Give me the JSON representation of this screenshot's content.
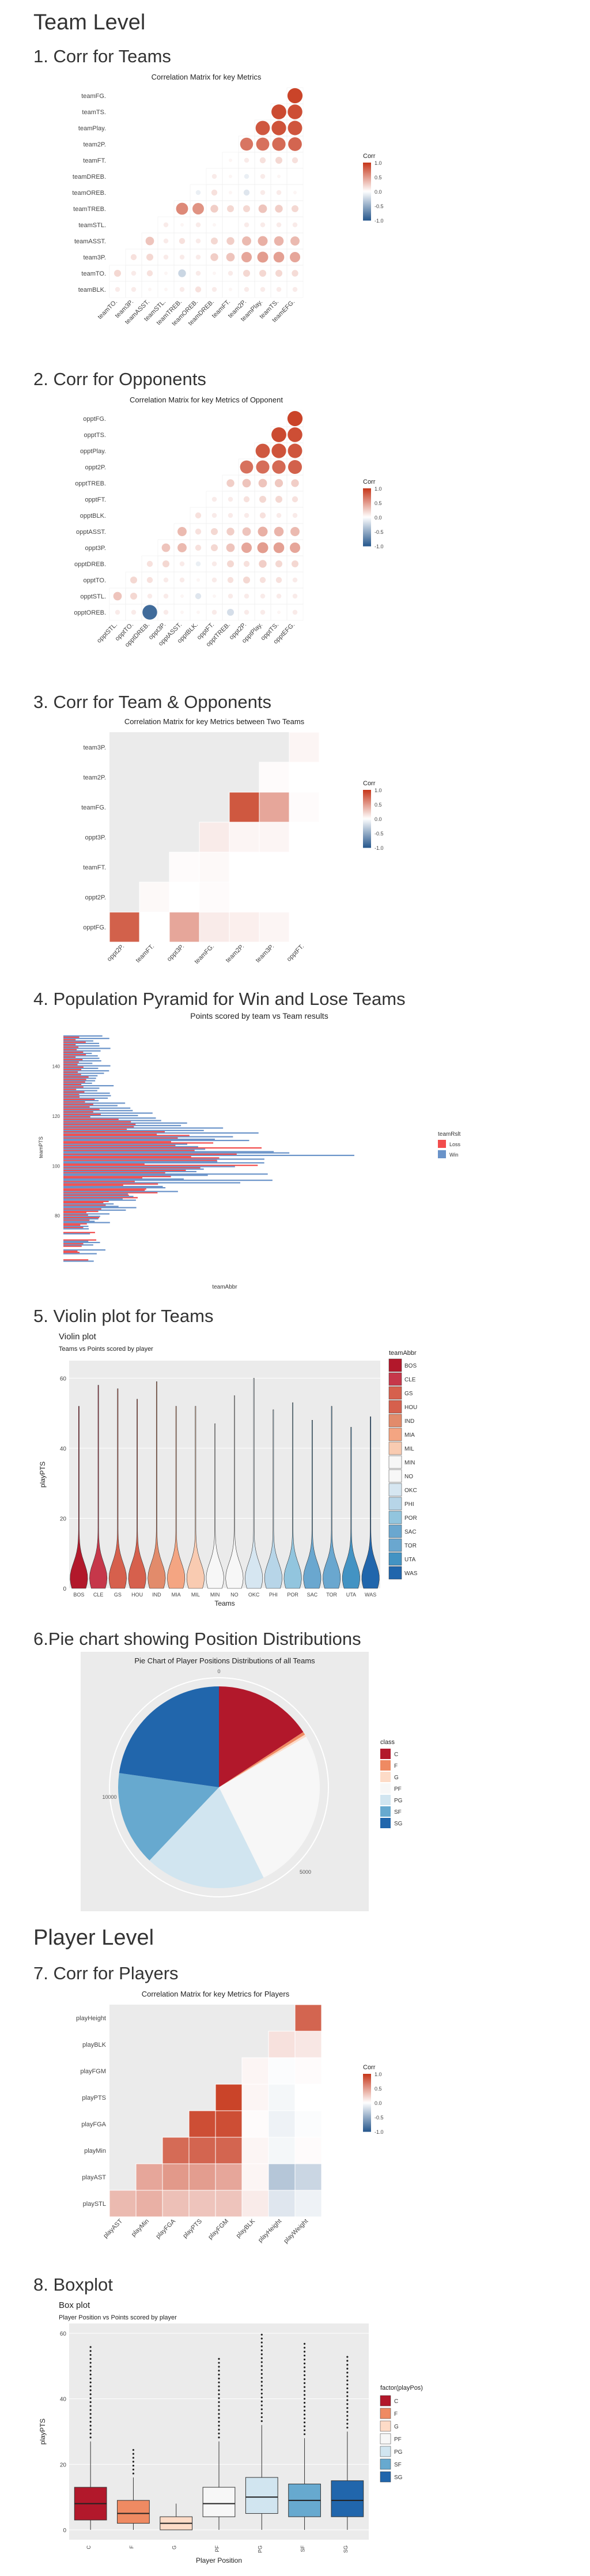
{
  "headings": {
    "team_level": "Team Level",
    "corr_teams": "1. Corr for Teams",
    "corr_opponents": "2. Corr for Opponents",
    "corr_team_opp": "3. Corr for Team & Opponents",
    "pyramid": "4. Population Pyramid for Win and Lose Teams",
    "violin": "5. Violin plot for Teams",
    "pie": "6.Pie chart showing Position Distributions",
    "player_level": "Player Level",
    "corr_players": "7. Corr for Players",
    "boxplot": "8. Boxplot"
  },
  "colors": {
    "corr_pos": "#c73a1e",
    "corr_neg": "#2b5b8f",
    "panel_bg": "#ebebeb",
    "win": "#6a93c9",
    "lose": "#f24c4c",
    "rdbu_13": [
      "#b2182b",
      "#c6374a",
      "#d6604d",
      "#e28b6b",
      "#f4a582",
      "#f9cbb1",
      "#f7f7f7",
      "#d6e6f1",
      "#b7d5e8",
      "#92c5de",
      "#6aa7cf",
      "#4393c3",
      "#2166ac"
    ],
    "rdbu_7": [
      "#b2182b",
      "#ef8a62",
      "#fddbc7",
      "#f7f7f7",
      "#d1e5f0",
      "#67a9cf",
      "#2166ac"
    ]
  },
  "chart_data": [
    {
      "id": "corr_teams",
      "type": "heatmap",
      "style": "circle",
      "title": "Correlation Matrix for key Metrics",
      "row_labels": [
        "teamFG.",
        "teamTS.",
        "teamPlay.",
        "team2P.",
        "teamFT.",
        "teamDREB.",
        "teamOREB.",
        "teamTREB.",
        "teamSTL.",
        "teamASST.",
        "team3P.",
        "teamTO.",
        "teamBLK."
      ],
      "col_labels": [
        "teamTO.",
        "team3P.",
        "teamASST.",
        "teamSTL.",
        "teamTREB.",
        "teamOREB.",
        "teamDREB.",
        "teamFT.",
        "team2P.",
        "teamPlay.",
        "teamTS.",
        "teamEFG."
      ],
      "values": [
        [
          0,
          0,
          0,
          0,
          0,
          0,
          0,
          0,
          0,
          0,
          0,
          0.95
        ],
        [
          0,
          0,
          0,
          0,
          0,
          0,
          0,
          0,
          0,
          0,
          0.92,
          0.9
        ],
        [
          0,
          0,
          0,
          0,
          0,
          0,
          0,
          0,
          0,
          0.85,
          0.88,
          0.86
        ],
        [
          0,
          0,
          0,
          0,
          0,
          0,
          0,
          0,
          0.7,
          0.72,
          0.75,
          0.78
        ],
        [
          0,
          0,
          0,
          0,
          0,
          0,
          0,
          0.05,
          0.1,
          0.15,
          0.2,
          0.15
        ],
        [
          0,
          0,
          0,
          0,
          0,
          0,
          0.1,
          0.05,
          -0.1,
          0.1,
          0.05,
          0.0
        ],
        [
          0,
          0,
          0,
          0,
          0,
          -0.1,
          0.15,
          0.05,
          -0.15,
          0.1,
          0.1,
          0.05
        ],
        [
          0,
          0,
          0,
          0,
          0.6,
          0.55,
          0.25,
          0.2,
          0.2,
          0.3,
          0.25,
          0.2
        ],
        [
          0,
          0,
          0,
          0.1,
          0.05,
          0.1,
          0.05,
          0.0,
          0.1,
          0.1,
          0.1,
          0.1
        ],
        [
          0,
          0,
          0.3,
          0.1,
          0.15,
          0.1,
          0.2,
          0.25,
          0.35,
          0.4,
          0.38,
          0.35
        ],
        [
          0,
          0.15,
          0.2,
          0.1,
          0.1,
          0.1,
          0.25,
          0.3,
          0.45,
          0.5,
          0.48,
          0.45
        ],
        [
          0.2,
          0.1,
          0.15,
          0.05,
          -0.25,
          0.1,
          0.05,
          0.1,
          0.2,
          0.2,
          0.2,
          0.18
        ],
        [
          0.1,
          0.1,
          0.05,
          0.05,
          0.1,
          0.15,
          0.1,
          0.05,
          0.1,
          0.1,
          0.1,
          0.1
        ]
      ],
      "legend_title": "Corr",
      "legend_ticks": [
        "1.0",
        "0.5",
        "0.0",
        "-0.5",
        "-1.0"
      ]
    },
    {
      "id": "corr_opponents",
      "type": "heatmap",
      "style": "circle",
      "title": "Correlation Matrix for key Metrics of Opponent",
      "row_labels": [
        "opptFG.",
        "opptTS.",
        "opptPlay.",
        "oppt2P.",
        "opptTREB.",
        "opptFT.",
        "opptBLK.",
        "opptASST.",
        "oppt3P.",
        "opptDREB.",
        "opptTO.",
        "opptSTL.",
        "opptOREB."
      ],
      "col_labels": [
        "opptSTL.",
        "opptTO.",
        "opptDREB.",
        "oppt3P.",
        "opptASST.",
        "opptBLK.",
        "opptFT.",
        "opptTREB.",
        "oppt2P.",
        "opptPlay.",
        "opptTS.",
        "opptEFG."
      ],
      "values": [
        [
          0,
          0,
          0,
          0,
          0,
          0,
          0,
          0,
          0,
          0,
          0,
          0.95
        ],
        [
          0,
          0,
          0,
          0,
          0,
          0,
          0,
          0,
          0,
          0,
          0.92,
          0.9
        ],
        [
          0,
          0,
          0,
          0,
          0,
          0,
          0,
          0,
          0,
          0.85,
          0.88,
          0.86
        ],
        [
          0,
          0,
          0,
          0,
          0,
          0,
          0,
          0,
          0.72,
          0.74,
          0.76,
          0.8
        ],
        [
          0,
          0,
          0,
          0,
          0,
          0,
          0,
          0.25,
          0.3,
          0.3,
          0.28,
          0.25
        ],
        [
          0,
          0,
          0,
          0,
          0,
          0,
          0.1,
          0.1,
          0.15,
          0.2,
          0.2,
          0.15
        ],
        [
          0,
          0,
          0,
          0,
          0,
          0.15,
          0.1,
          0.1,
          0.1,
          0.15,
          0.1,
          0.1
        ],
        [
          0,
          0,
          0,
          0,
          0.35,
          0.15,
          0.2,
          0.25,
          0.3,
          0.4,
          0.38,
          0.35
        ],
        [
          0,
          0,
          0,
          0.3,
          0.35,
          0.15,
          0.2,
          0.3,
          0.45,
          0.5,
          0.48,
          0.45
        ],
        [
          0,
          0,
          0.15,
          0.2,
          0.1,
          -0.1,
          0.1,
          0.2,
          0.15,
          0.25,
          0.2,
          0.2
        ],
        [
          0,
          0.2,
          0.15,
          0.1,
          0.1,
          0.05,
          0.1,
          0.15,
          0.2,
          0.15,
          0.15,
          0.1
        ],
        [
          0.3,
          0.2,
          0.1,
          0.1,
          0.05,
          -0.15,
          0.05,
          0.1,
          0.1,
          0.1,
          0.1,
          0.1
        ],
        [
          0.1,
          0.1,
          -0.9,
          0.1,
          0.05,
          0.05,
          0.1,
          -0.2,
          0.1,
          0.1,
          0.05,
          0.1
        ]
      ],
      "legend_title": "Corr",
      "legend_ticks": [
        "1.0",
        "0.5",
        "0.0",
        "-0.5",
        "-1.0"
      ]
    },
    {
      "id": "corr_team_opp",
      "type": "heatmap",
      "style": "tile",
      "title": "Correlation Matrix for key Metrics between Two Teams",
      "row_labels": [
        "team3P.",
        "team2P.",
        "teamFG.",
        "oppt3P.",
        "teamFT.",
        "oppt2P.",
        "opptFG."
      ],
      "col_labels": [
        "oppt2P.",
        "teamFT.",
        "oppt3P.",
        "teamFG.",
        "team2P.",
        "team3P.",
        "opptFT."
      ],
      "values": [
        [
          0,
          0,
          0,
          0,
          0,
          0,
          0.05
        ],
        [
          0,
          0,
          0,
          0,
          0,
          0.02,
          0.0
        ],
        [
          0,
          0,
          0,
          0,
          0.85,
          0.45,
          0.02
        ],
        [
          0,
          0,
          0,
          0.1,
          0.05,
          0.05,
          0.0
        ],
        [
          0,
          0,
          0.02,
          0.03,
          0.0,
          0.0,
          0.0
        ],
        [
          0,
          0.03,
          0.0,
          0.02,
          0.0,
          0.0,
          0.0
        ],
        [
          0.8,
          0.0,
          0.45,
          0.1,
          0.08,
          0.05,
          0.0
        ]
      ],
      "legend_title": "Corr",
      "legend_ticks": [
        "1.0",
        "0.5",
        "0.0",
        "-0.5",
        "-1.0"
      ]
    },
    {
      "id": "pyramid",
      "type": "bar",
      "title": "Points scored by team vs Team results",
      "xlabel": "teamAbbr",
      "ylabel": "teamPTS",
      "yticks": [
        "140",
        "120",
        "100",
        "80"
      ],
      "ylim": [
        60,
        155
      ],
      "legend_title": "teamRslt",
      "legend": [
        "Loss",
        "Win"
      ],
      "note": "horizontal bars per point total, Win to one side and Loss to the other"
    },
    {
      "id": "violin",
      "type": "area",
      "title": "Violin plot",
      "subtitle": "Teams vs Points scored by player",
      "xlabel": "Teams",
      "ylabel": "playPTS",
      "ylim": [
        0,
        65
      ],
      "yticks": [
        0,
        20,
        40,
        60
      ],
      "categories": [
        "BOS",
        "CLE",
        "GS",
        "HOU",
        "IND",
        "MIA",
        "MIL",
        "MIN",
        "NO",
        "OKC",
        "PHI",
        "POR",
        "SAC",
        "TOR",
        "UTA",
        "WAS"
      ],
      "max_values": [
        52,
        58,
        57,
        54,
        59,
        52,
        52,
        47,
        55,
        60,
        51,
        53,
        48,
        52,
        46,
        49
      ],
      "legend_title": "teamAbbr"
    },
    {
      "id": "pie",
      "type": "pie",
      "title": "Pie Chart of Player Positions Distributions of all Teams",
      "categories": [
        "C",
        "F",
        "G",
        "PF",
        "PG",
        "SF",
        "SG"
      ],
      "values": [
        2600,
        80,
        60,
        4300,
        3200,
        2500,
        3750
      ],
      "tick_labels": [
        "0",
        "5000",
        "10000"
      ],
      "legend_title": "class"
    },
    {
      "id": "corr_players",
      "type": "heatmap",
      "style": "tile",
      "title": "Correlation Matrix for key Metrics for Players",
      "row_labels": [
        "playHeight",
        "playBLK",
        "playFGM",
        "playPTS",
        "playFGA",
        "playMin",
        "playAST",
        "playSTL"
      ],
      "col_labels": [
        "playAST",
        "playMin",
        "playFGA",
        "playPTS",
        "playFGM",
        "playBLK",
        "playHeight",
        "playWeight"
      ],
      "values": [
        [
          0,
          0,
          0,
          0,
          0,
          0,
          0,
          0.78
        ],
        [
          0,
          0,
          0,
          0,
          0,
          0,
          0.15,
          0.12
        ],
        [
          0,
          0,
          0,
          0,
          0,
          0.05,
          -0.02,
          0.02
        ],
        [
          0,
          0,
          0,
          0,
          0.95,
          0.05,
          -0.05,
          0.0
        ],
        [
          0,
          0,
          0,
          0.9,
          0.9,
          0.02,
          -0.08,
          -0.02
        ],
        [
          0,
          0,
          0.75,
          0.78,
          0.78,
          0.05,
          -0.05,
          0.02
        ],
        [
          0,
          0.45,
          0.52,
          0.5,
          0.45,
          0.05,
          -0.35,
          -0.25
        ],
        [
          0.35,
          0.4,
          0.32,
          0.3,
          0.3,
          0.1,
          -0.15,
          -0.08
        ]
      ],
      "legend_title": "Corr",
      "legend_ticks": [
        "1.0",
        "0.5",
        "0.0",
        "-0.5",
        "-1.0"
      ]
    },
    {
      "id": "boxplot",
      "type": "bar",
      "title": "Box plot",
      "subtitle": "Player Position vs Points scored by player",
      "xlabel": "Player Position",
      "ylabel": "playPTS",
      "ylim": [
        -3,
        63
      ],
      "yticks": [
        0,
        20,
        40,
        60
      ],
      "categories": [
        "C",
        "F",
        "G",
        "PF",
        "PG",
        "SF",
        "SG"
      ],
      "box": [
        {
          "min": 0,
          "q1": 3,
          "median": 8,
          "q3": 13,
          "max": 27,
          "outlier_max": 57
        },
        {
          "min": 0,
          "q1": 2,
          "median": 5,
          "q3": 9,
          "max": 16,
          "outlier_max": 25
        },
        {
          "min": 0,
          "q1": 0,
          "median": 2,
          "q3": 4,
          "max": 8,
          "outlier_max": 8
        },
        {
          "min": 0,
          "q1": 4,
          "median": 8,
          "q3": 13,
          "max": 27,
          "outlier_max": 53
        },
        {
          "min": 0,
          "q1": 5,
          "median": 10,
          "q3": 16,
          "max": 32,
          "outlier_max": 60
        },
        {
          "min": 0,
          "q1": 4,
          "median": 9,
          "q3": 14,
          "max": 28,
          "outlier_max": 57
        },
        {
          "min": 0,
          "q1": 4,
          "median": 9,
          "q3": 15,
          "max": 30,
          "outlier_max": 53
        }
      ],
      "legend_title": "factor(playPos)"
    }
  ]
}
